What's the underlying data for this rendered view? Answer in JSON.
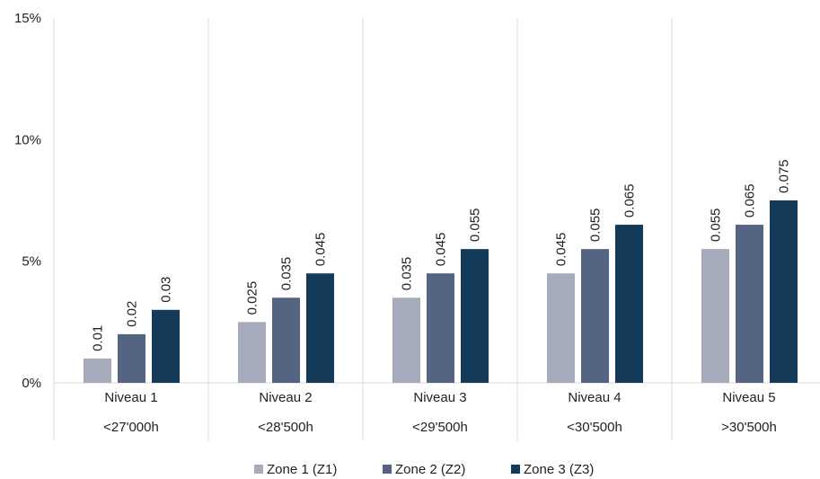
{
  "chart_data": {
    "type": "bar",
    "categories": [
      "Niveau 1",
      "Niveau 2",
      "Niveau 3",
      "Niveau 4",
      "Niveau 5"
    ],
    "subcategories": [
      "<27'000h",
      "<28'500h",
      "<29'500h",
      "<30'500h",
      ">30'500h"
    ],
    "series": [
      {
        "name": "Zone 1 (Z1)",
        "values": [
          0.01,
          0.025,
          0.035,
          0.045,
          0.055
        ],
        "color": "#a6abbc"
      },
      {
        "name": "Zone 2 (Z2)",
        "values": [
          0.02,
          0.035,
          0.045,
          0.055,
          0.065
        ],
        "color": "#556482"
      },
      {
        "name": "Zone 3 (Z3)",
        "values": [
          0.03,
          0.045,
          0.055,
          0.065,
          0.075
        ],
        "color": "#143a5a"
      }
    ],
    "data_labels": [
      [
        "0.01",
        "0.025",
        "0.035",
        "0.045",
        "0.055"
      ],
      [
        "0.02",
        "0.035",
        "0.045",
        "0.055",
        "0.065"
      ],
      [
        "0.03",
        "0.045",
        "0.055",
        "0.065",
        "0.075"
      ]
    ],
    "y_ticks": [
      0,
      0.05,
      0.1,
      0.15
    ],
    "y_tick_labels": [
      "0%",
      "5%",
      "10%",
      "15%"
    ],
    "ylim": [
      0,
      0.15
    ],
    "title": "",
    "xlabel": "",
    "ylabel": "",
    "grid": "vertical separators between categories",
    "legend_position": "bottom-center"
  }
}
